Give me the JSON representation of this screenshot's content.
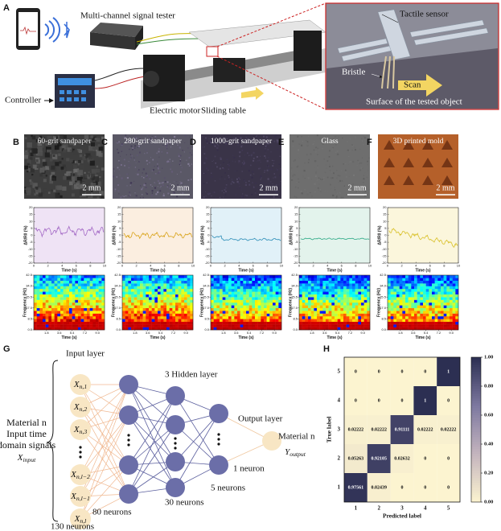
{
  "panel_a": {
    "letter": "A",
    "tester": "Multi-channel signal tester",
    "controller": "Controller",
    "motor": "Electric motor",
    "table": "Sliding table",
    "inset": {
      "sensor": "Tactile sensor",
      "bristle": "Bristle",
      "scan": "Scan",
      "surface": "Surface of the tested object"
    }
  },
  "samples": [
    {
      "letter": "B",
      "name": "60-grit sandpaper",
      "scale": "2 mm"
    },
    {
      "letter": "C",
      "name": "280-grit sandpaper",
      "scale": "2 mm"
    },
    {
      "letter": "D",
      "name": "1000-grit sandpaper",
      "scale": "2 mm"
    },
    {
      "letter": "E",
      "name": "Glass",
      "scale": "2 mm"
    },
    {
      "letter": "F",
      "name": "3D printed mold",
      "scale": "2 mm"
    }
  ],
  "line_axes": {
    "ylabel": "ΔR/R0 (%)",
    "xlabel": "Time (s)",
    "ylim": [
      -20,
      20
    ],
    "yticks": [
      20,
      15,
      10,
      5,
      0,
      -5,
      -10,
      -15,
      -20
    ],
    "xlim": [
      0,
      10
    ],
    "xticks": [
      0,
      2,
      4,
      6,
      8,
      10
    ]
  },
  "spectrogram_axes": {
    "ylabel": "Frequency (Hz)",
    "xlabel": "Time (s)",
    "ylim": [
      0,
      42.5
    ],
    "yticks": [
      {
        "value": 0,
        "label": "0.0"
      },
      8.5,
      {
        "value": 17,
        "label": "17.0"
      },
      25.5,
      {
        "value": 34,
        "label": "34.0"
      },
      42.5
    ],
    "xlim": [
      0,
      10
    ],
    "xticks": [
      1.8,
      3.6,
      5.4,
      7.2,
      {
        "value": 9,
        "label": "9.0"
      }
    ]
  },
  "panel_g": {
    "letter": "G",
    "input_layer": "Input layer",
    "hidden_layer": "3 Hidden layer",
    "output_layer": "Output layer",
    "input_desc": [
      "Material n",
      "Input time",
      "domain signals"
    ],
    "input_symbol": {
      "symbol": "X",
      "index": "input"
    },
    "input_nodes": [
      {
        "symbol": "X",
        "index": "n,1"
      },
      {
        "symbol": "X",
        "index": "n,2"
      },
      {
        "symbol": "X",
        "index": "n,3"
      },
      {
        "symbol": "X",
        "index": "n,l−2"
      },
      {
        "symbol": "X",
        "index": "n,l−1"
      },
      {
        "symbol": "X",
        "index": "n,l"
      }
    ],
    "output_desc": "Material n",
    "output_symbol": {
      "symbol": "Y",
      "index": "output"
    },
    "counts": [
      "130 neurons",
      "80 neurons",
      "30 neurons",
      "5 neurons",
      "1 neuron"
    ]
  },
  "panel_h": {
    "letter": "H",
    "ylabel": "True label",
    "xlabel": "Predicted label",
    "labels": [
      1,
      2,
      3,
      4,
      5
    ],
    "matrix": [
      [
        0.97561,
        0.02439,
        0,
        0,
        0
      ],
      [
        0.05263,
        0.92105,
        0.02632,
        0,
        0
      ],
      [
        0.02222,
        0.02222,
        0.91111,
        0.02222,
        0.02222
      ],
      [
        0,
        0,
        0,
        1,
        0
      ],
      [
        0,
        0,
        0,
        0,
        1
      ]
    ],
    "colorbar_lim": [
      0,
      1
    ],
    "colorbar_ticks": [
      {
        "value": 0,
        "label": "0.00"
      },
      {
        "value": 0.2,
        "label": "0.20"
      },
      {
        "value": 0.4,
        "label": "0.40"
      },
      {
        "value": 0.6,
        "label": "0.60"
      },
      {
        "value": 0.8,
        "label": "0.80"
      },
      {
        "value": 1,
        "label": "1.00"
      }
    ]
  }
}
